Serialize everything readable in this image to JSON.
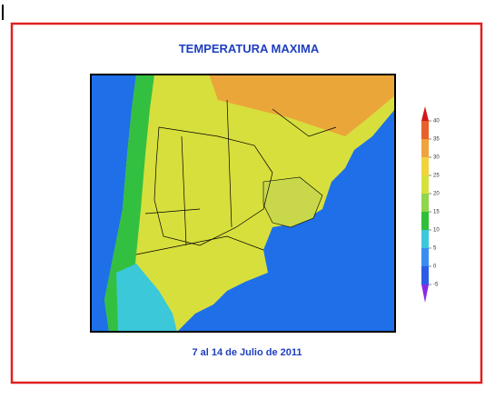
{
  "title": "TEMPERATURA MAXIMA",
  "subtitle": "7 al 14 de Julio de 2011",
  "colorbar": {
    "ticks": [
      -5,
      0,
      5,
      10,
      15,
      20,
      25,
      30,
      35,
      40
    ],
    "colors": [
      "#2b5ce6",
      "#3a8df0",
      "#3cc8dc",
      "#2fbf3a",
      "#8fd64a",
      "#d6e03c",
      "#f0d43c",
      "#f0a33c",
      "#e8602c"
    ],
    "under_color": "#8a2be2",
    "over_color": "#d01818"
  }
}
